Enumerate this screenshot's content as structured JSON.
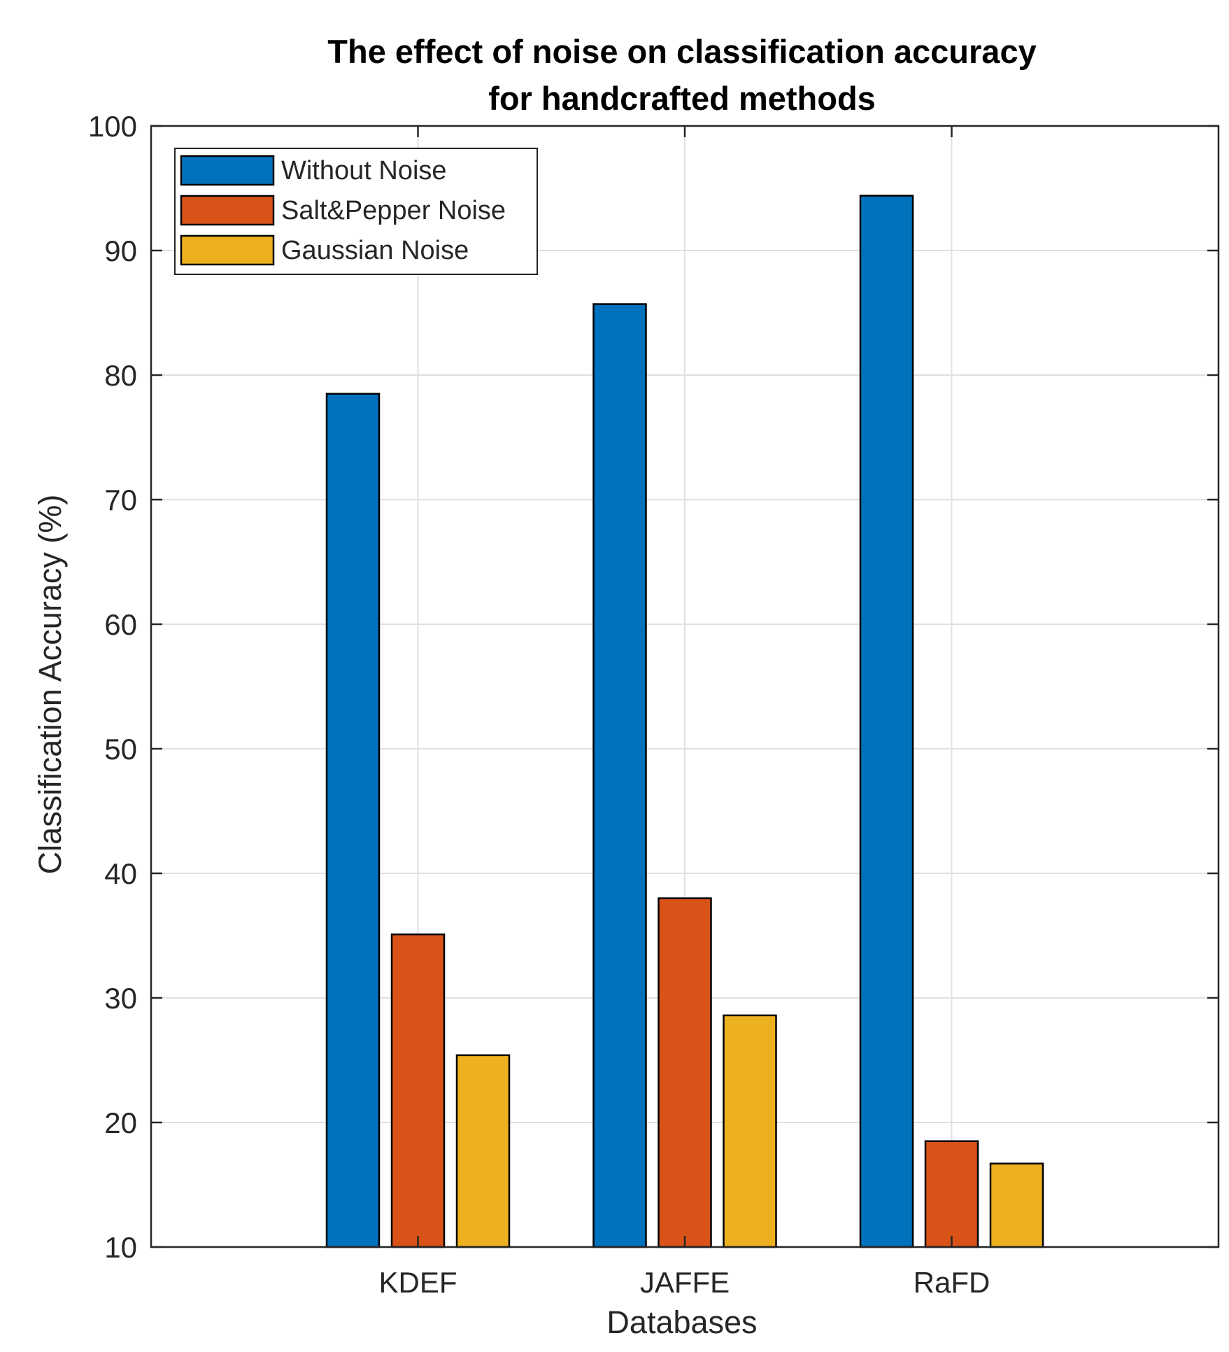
{
  "chart_data": {
    "type": "bar",
    "title": [
      "The effect of noise on classification accuracy",
      "for handcrafted methods"
    ],
    "xlabel": "Databases",
    "ylabel": "Classification Accuracy (%)",
    "categories": [
      "KDEF",
      "JAFFE",
      "RaFD"
    ],
    "ylim": [
      10,
      100
    ],
    "yticks": [
      "10",
      "20",
      "30",
      "40",
      "50",
      "60",
      "70",
      "80",
      "90",
      "100"
    ],
    "grid": true,
    "legend_position": "top-left",
    "series": [
      {
        "name": "Without Noise",
        "color": "#0072BD",
        "values": [
          78.5,
          85.7,
          94.4
        ]
      },
      {
        "name": "Salt&Pepper Noise",
        "color": "#D95319",
        "values": [
          35.1,
          38.0,
          18.5
        ]
      },
      {
        "name": "Gaussian Noise",
        "color": "#EDB120",
        "values": [
          25.4,
          28.6,
          16.7
        ]
      }
    ]
  }
}
